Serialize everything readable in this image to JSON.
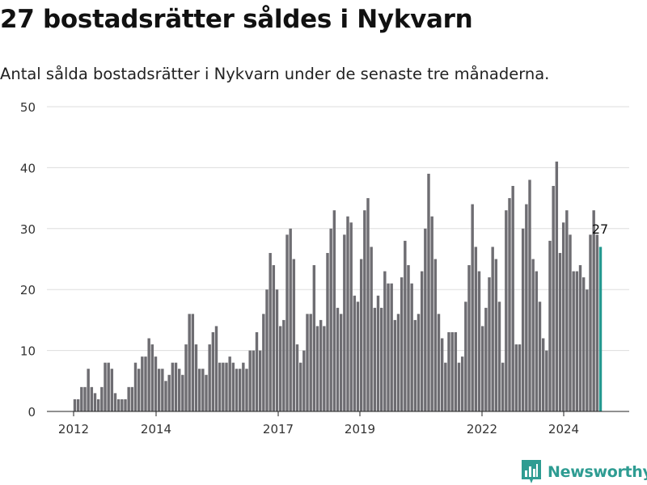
{
  "title": "27 bostadsrätter såldes i Nykvarn",
  "subtitle": "Antal sålda bostadsrätter i Nykvarn under de senaste tre månaderna.",
  "brand": {
    "name": "Newsworthy",
    "color": "#2e9c92"
  },
  "chart_data": {
    "type": "bar",
    "title": "27 bostadsrätter såldes i Nykvarn",
    "subtitle": "Antal sålda bostadsrätter i Nykvarn under de senaste tre månaderna.",
    "xlabel": "",
    "ylabel": "",
    "ylim": [
      0,
      50
    ],
    "yticks": [
      0,
      10,
      20,
      30,
      40,
      50
    ],
    "xticks": [
      "2012",
      "2014",
      "2017",
      "2019",
      "2022",
      "2024"
    ],
    "grid": "horizontal",
    "bar_color": "#6e6d72",
    "highlight_color": "#249990",
    "highlight_label": "27",
    "values": [
      2,
      2,
      4,
      4,
      7,
      4,
      3,
      2,
      4,
      8,
      8,
      7,
      3,
      2,
      2,
      2,
      4,
      4,
      8,
      7,
      9,
      9,
      12,
      11,
      9,
      7,
      7,
      5,
      6,
      8,
      8,
      7,
      6,
      11,
      16,
      16,
      11,
      7,
      7,
      6,
      11,
      13,
      14,
      8,
      8,
      8,
      9,
      8,
      7,
      7,
      8,
      7,
      10,
      10,
      13,
      10,
      16,
      20,
      26,
      24,
      20,
      14,
      15,
      29,
      30,
      25,
      11,
      8,
      10,
      16,
      16,
      24,
      14,
      15,
      14,
      26,
      30,
      33,
      17,
      16,
      29,
      32,
      31,
      19,
      18,
      25,
      33,
      35,
      27,
      17,
      19,
      17,
      23,
      21,
      21,
      15,
      16,
      22,
      28,
      24,
      21,
      15,
      16,
      23,
      30,
      39,
      32,
      25,
      16,
      12,
      8,
      13,
      13,
      13,
      8,
      9,
      18,
      24,
      34,
      27,
      23,
      14,
      17,
      22,
      27,
      25,
      18,
      8,
      33,
      35,
      37,
      11,
      11,
      30,
      34,
      38,
      25,
      23,
      18,
      12,
      10,
      28,
      37,
      41,
      26,
      31,
      33,
      29,
      23,
      23,
      24,
      22,
      20,
      29,
      33,
      29,
      27
    ]
  }
}
